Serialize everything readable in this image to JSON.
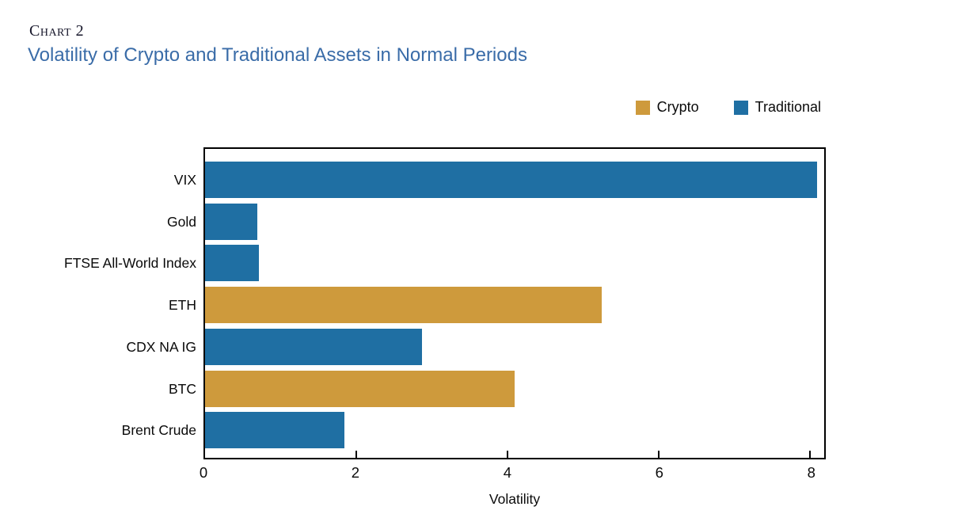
{
  "header": {
    "chart_label": "Chart 2",
    "title": "Volatility of Crypto and Traditional Assets in Normal Periods",
    "title_color": "#3a6ca8",
    "chart_label_color": "#17172b"
  },
  "legend": {
    "position": "top-right",
    "items": [
      {
        "label": "Crypto",
        "color": "#ce9a3c"
      },
      {
        "label": "Traditional",
        "color": "#1f6fa3"
      }
    ]
  },
  "chart_data": {
    "type": "bar",
    "orientation": "horizontal",
    "title": "Volatility of Crypto and Traditional Assets in Normal Periods",
    "categories": [
      "VIX",
      "Gold",
      "FTSE All-World Index",
      "ETH",
      "CDX NA IG",
      "BTC",
      "Brent Crude"
    ],
    "values": [
      8.1,
      0.69,
      0.71,
      5.25,
      2.87,
      4.1,
      1.84
    ],
    "groups": [
      "Traditional",
      "Traditional",
      "Traditional",
      "Crypto",
      "Traditional",
      "Crypto",
      "Traditional"
    ],
    "colors": {
      "Crypto": "#ce9a3c",
      "Traditional": "#1f6fa3"
    },
    "xlabel": "Volatility",
    "ylabel": "",
    "xlim": [
      0,
      8.19
    ],
    "xticks": [
      0,
      2,
      4,
      6,
      8
    ],
    "grid": false,
    "legend_position": "top-right",
    "frame_color": "#000000"
  }
}
